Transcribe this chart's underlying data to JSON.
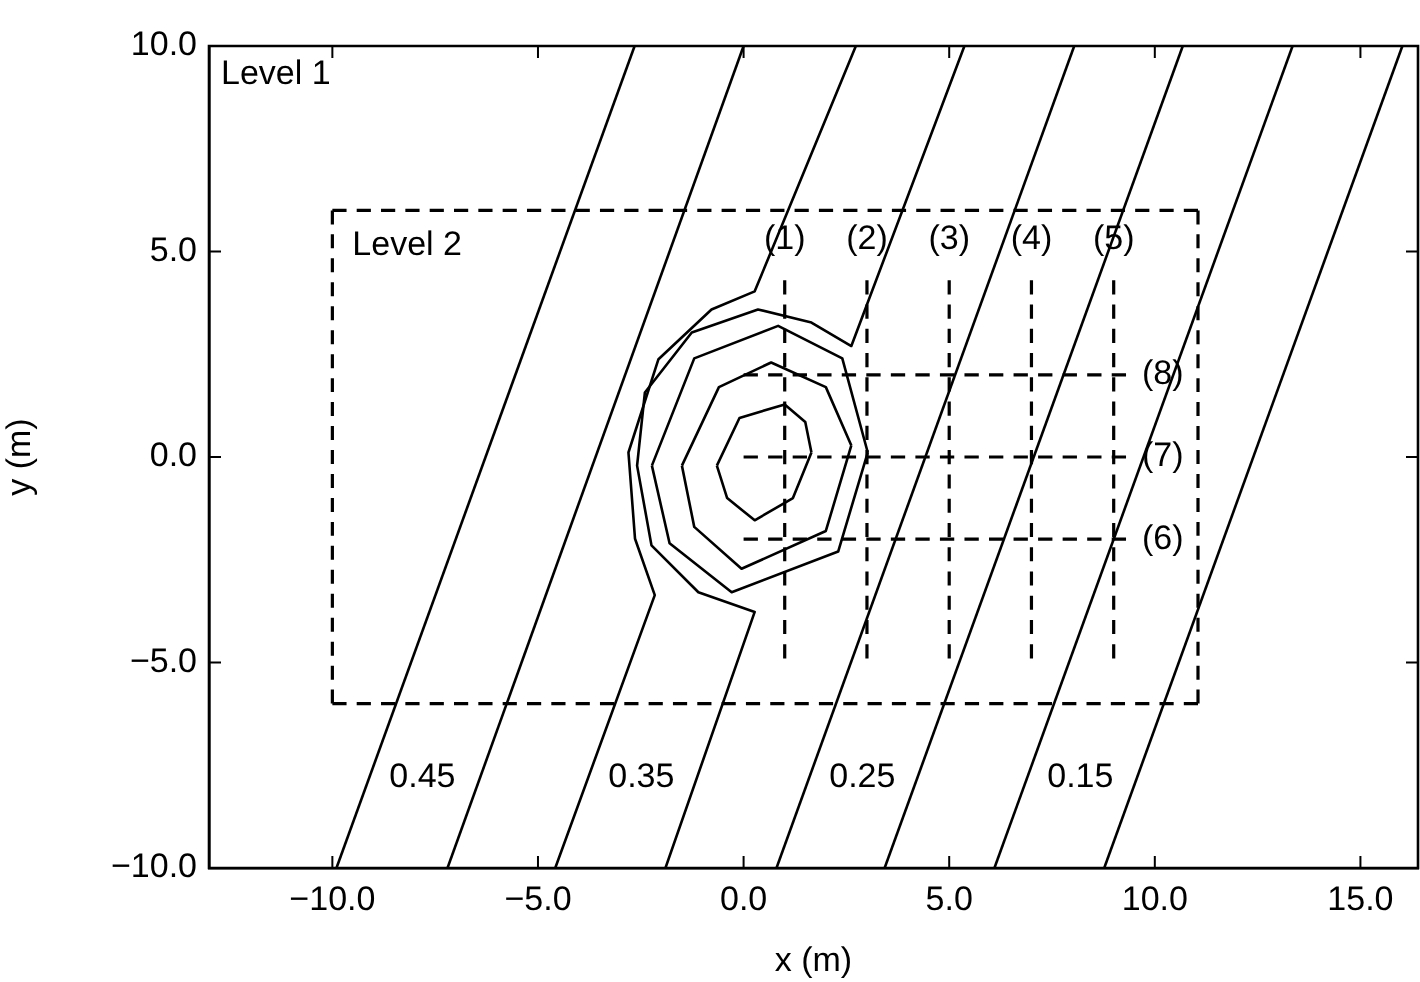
{
  "chart_data": {
    "type": "line",
    "xlabel": "x (m)",
    "ylabel": "y (m)",
    "xlim": [
      -13,
      16.4
    ],
    "ylim": [
      -10,
      10
    ],
    "xticks": [
      {
        "value": -10,
        "label": "−10.0"
      },
      {
        "value": -5,
        "label": "−5.0"
      },
      {
        "value": 0,
        "label": "0.0"
      },
      {
        "value": 5,
        "label": "5.0"
      },
      {
        "value": 10,
        "label": "10.0"
      },
      {
        "value": 15,
        "label": "15.0"
      }
    ],
    "yticks": [
      {
        "value": -10,
        "label": "−10.0"
      },
      {
        "value": -5,
        "label": "−5.0"
      },
      {
        "value": 0,
        "label": "0.0"
      },
      {
        "value": 5,
        "label": "5.0"
      },
      {
        "value": 10,
        "label": "10.0"
      }
    ],
    "grid": false,
    "legend": false,
    "series": [
      {
        "name": "0.45",
        "color": "#000000",
        "line_style": "solid",
        "x": [
          -9.9,
          -2.65
        ],
        "values": [
          -10,
          10
        ]
      },
      {
        "color": "#000000",
        "line_style": "solid",
        "x": [
          -7.2,
          0.0
        ],
        "values": [
          -10,
          10
        ]
      },
      {
        "name": "0.35",
        "color": "#000000",
        "line_style": "solid",
        "x": [
          2.73,
          0.27,
          -0.78,
          -2.07,
          -2.8,
          -2.64,
          -2.16,
          -4.58
        ],
        "values": [
          10,
          4.03,
          3.59,
          2.38,
          0.11,
          -1.99,
          -3.36,
          -10
        ]
      },
      {
        "color": "#000000",
        "line_style": "solid",
        "x": [
          5.37,
          2.62,
          1.65,
          0.35,
          -1.26,
          -2.4,
          -2.59,
          -2.24,
          -1.1,
          0.27,
          -1.9
        ],
        "values": [
          10,
          2.7,
          3.27,
          3.59,
          3.03,
          1.57,
          -0.21,
          -2.15,
          -3.29,
          -3.77,
          -10
        ]
      },
      {
        "name": "0.25",
        "color": "#000000",
        "line_style": "solid",
        "x": [
          0.8,
          8.04
        ],
        "values": [
          -10,
          10
        ]
      },
      {
        "color": "#000000",
        "line_style": "solid",
        "x": [
          3.43,
          10.68
        ],
        "values": [
          -10,
          10
        ]
      },
      {
        "name": "0.15",
        "color": "#000000",
        "line_style": "solid",
        "x": [
          6.1,
          13.35
        ],
        "values": [
          -10,
          10
        ]
      },
      {
        "color": "#000000",
        "line_style": "solid",
        "x": [
          8.77,
          16.02
        ],
        "values": [
          -10,
          10
        ]
      },
      {
        "color": "#000000",
        "line_style": "solid",
        "x": [
          -0.65,
          -0.1,
          1.0,
          1.5,
          1.65
        ],
        "values": [
          -0.21,
          0.95,
          1.28,
          0.85,
          0.11
        ]
      },
      {
        "color": "#000000",
        "line_style": "solid",
        "x": [
          -0.65,
          -0.4,
          0.27,
          1.2,
          1.65
        ],
        "values": [
          -0.21,
          -1.0,
          -1.54,
          -1.0,
          0.11
        ]
      },
      {
        "color": "#000000",
        "line_style": "solid",
        "x": [
          -1.5,
          -0.6,
          0.67,
          2.0,
          2.62
        ],
        "values": [
          -0.21,
          1.7,
          2.3,
          1.7,
          0.28
        ]
      },
      {
        "color": "#000000",
        "line_style": "solid",
        "x": [
          -1.5,
          -1.2,
          -0.05,
          2.0,
          2.62
        ],
        "values": [
          -0.21,
          -1.7,
          -2.72,
          -1.8,
          0.28
        ]
      },
      {
        "color": "#000000",
        "line_style": "solid",
        "x": [
          -2.23,
          -1.2,
          0.84,
          2.4,
          3.02
        ],
        "values": [
          -0.21,
          2.4,
          3.19,
          2.4,
          0.11
        ]
      },
      {
        "color": "#000000",
        "line_style": "solid",
        "x": [
          -2.23,
          -1.8,
          -0.29,
          2.3,
          3.02
        ],
        "values": [
          -0.21,
          -2.1,
          -3.29,
          -2.3,
          0.11
        ]
      },
      {
        "name": "Level 2",
        "color": "#000000",
        "line_style": "dashed",
        "x": [
          -10,
          11.05
        ],
        "values": [
          6,
          6
        ]
      },
      {
        "color": "#000000",
        "line_style": "dashed",
        "x": [
          11.05,
          11.05
        ],
        "values": [
          6,
          -6
        ]
      },
      {
        "color": "#000000",
        "line_style": "dashed",
        "x": [
          -10,
          11.05
        ],
        "values": [
          -6,
          -6
        ]
      },
      {
        "color": "#000000",
        "line_style": "dashed",
        "x": [
          -10,
          -10
        ],
        "values": [
          6,
          -6
        ]
      },
      {
        "color": "#000000",
        "line_style": "dashed",
        "x": [
          1,
          1
        ],
        "values": [
          4.3,
          -4.9
        ]
      },
      {
        "color": "#000000",
        "line_style": "dashed",
        "x": [
          3,
          3
        ],
        "values": [
          4.3,
          -4.9
        ]
      },
      {
        "color": "#000000",
        "line_style": "dashed",
        "x": [
          5,
          5
        ],
        "values": [
          4.3,
          -4.9
        ]
      },
      {
        "color": "#000000",
        "line_style": "dashed",
        "x": [
          7,
          7
        ],
        "values": [
          4.3,
          -4.9
        ]
      },
      {
        "color": "#000000",
        "line_style": "dashed",
        "x": [
          9,
          9
        ],
        "values": [
          4.3,
          -4.9
        ]
      },
      {
        "color": "#000000",
        "line_style": "dashed",
        "x": [
          0,
          9.3
        ],
        "values": [
          2,
          2
        ]
      },
      {
        "color": "#000000",
        "line_style": "dashed",
        "x": [
          0,
          9.3
        ],
        "values": [
          0,
          0
        ]
      },
      {
        "color": "#000000",
        "line_style": "dashed",
        "x": [
          0,
          9.3
        ],
        "values": [
          -2,
          -2
        ]
      }
    ],
    "annotations": [
      "Level 1",
      {
        "text": "(1)",
        "x": 1,
        "y": 4.3
      },
      {
        "text": "(2)",
        "x": 3,
        "y": 4.3
      },
      {
        "text": "(3)",
        "x": 5,
        "y": 4.3
      },
      {
        "text": "(4)",
        "x": 7,
        "y": 4.3
      },
      {
        "text": "(5)",
        "x": 9,
        "y": 4.3
      },
      {
        "text": "(8)",
        "x": 9.3,
        "y": 2
      },
      {
        "text": "(7)",
        "x": 9.3,
        "y": 0
      },
      {
        "text": "(6)",
        "x": 9.3,
        "y": -2
      }
    ]
  }
}
